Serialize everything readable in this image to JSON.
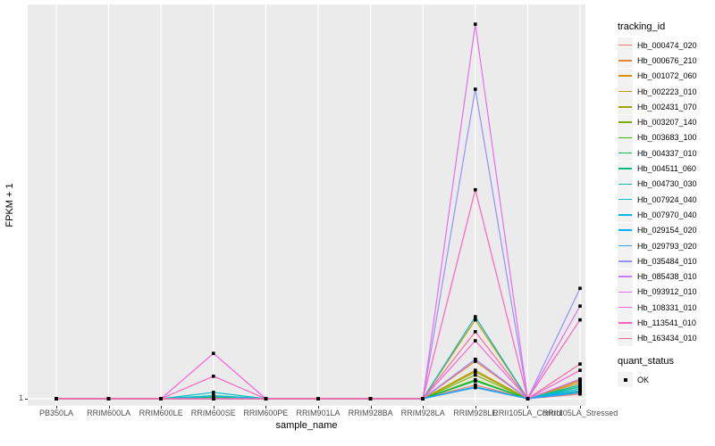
{
  "figure": {
    "background": "#FFFFFF",
    "panel_background": "#EBEBEB",
    "gridline_color": "#FFFFFF",
    "point_color": "#000000",
    "tick_label_color": "#4D4D4D"
  },
  "chart_data": {
    "type": "line",
    "title": "",
    "xlabel": "sample_name",
    "ylabel": "FPKM + 1",
    "y_tick_labels": [
      "1"
    ],
    "values_unit": "fraction of panel height above the y=1 baseline (only the '1' tick is labeled on the axis); 0 = FPKM+1 of 1",
    "legend_position": "right",
    "grid": "major vertical per category, horizontal at y=1",
    "categories": [
      "PB350LA",
      "RRIM600LA",
      "RRIM600LE",
      "RRIM600SE",
      "RRIM600PE",
      "RRIM901LA",
      "RRIM928BA",
      "RRIM928LA",
      "RRIM928LE",
      "RRII105LA_Control",
      "RRII105LA_Stressed"
    ],
    "series": [
      {
        "name": "Hb_000474_020",
        "color": "#F8766D",
        "values": [
          0,
          0,
          0,
          0,
          0,
          0,
          0,
          0,
          0.035,
          0,
          0.012
        ]
      },
      {
        "name": "Hb_000676_210",
        "color": "#EA8331",
        "values": [
          0,
          0,
          0,
          0,
          0,
          0,
          0,
          0,
          0.095,
          0,
          0.045
        ]
      },
      {
        "name": "Hb_001072_060",
        "color": "#D89000",
        "values": [
          0,
          0,
          0,
          0,
          0,
          0,
          0,
          0,
          0.2,
          0,
          0.048
        ]
      },
      {
        "name": "Hb_002223_010",
        "color": "#C09B00",
        "values": [
          0,
          0,
          0,
          0,
          0,
          0,
          0,
          0,
          0.072,
          0,
          0.04
        ]
      },
      {
        "name": "Hb_002431_070",
        "color": "#A3A500",
        "values": [
          0,
          0,
          0,
          0.004,
          0,
          0,
          0,
          0,
          0.068,
          0,
          0.034
        ]
      },
      {
        "name": "Hb_003207_140",
        "color": "#7CAE00",
        "values": [
          0,
          0,
          0,
          0,
          0,
          0,
          0,
          0,
          0.06,
          0,
          0.03
        ]
      },
      {
        "name": "Hb_003683_100",
        "color": "#39B600",
        "values": [
          0,
          0,
          0,
          0,
          0,
          0,
          0,
          0,
          0.048,
          0,
          0.025
        ]
      },
      {
        "name": "Hb_004337_010",
        "color": "#00BB4E",
        "values": [
          0,
          0,
          0,
          0,
          0,
          0,
          0,
          0,
          0.045,
          0,
          0.02
        ]
      },
      {
        "name": "Hb_004511_060",
        "color": "#00BF7D",
        "values": [
          0,
          0,
          0,
          0.004,
          0,
          0,
          0,
          0,
          0.03,
          0,
          0.018
        ]
      },
      {
        "name": "Hb_004730_030",
        "color": "#00C1A3",
        "values": [
          0,
          0,
          0,
          0.008,
          0,
          0,
          0,
          0,
          0.1,
          0,
          0.03
        ]
      },
      {
        "name": "Hb_007924_040",
        "color": "#00BFC4",
        "values": [
          0,
          0,
          0,
          0.016,
          0,
          0,
          0,
          0,
          0.208,
          0,
          0.035
        ]
      },
      {
        "name": "Hb_007970_040",
        "color": "#00BAE0",
        "values": [
          0,
          0,
          0,
          0.007,
          0,
          0,
          0,
          0,
          0.1,
          0,
          0.025
        ]
      },
      {
        "name": "Hb_029154_020",
        "color": "#00B0F6",
        "values": [
          0,
          0,
          0,
          0,
          0,
          0,
          0,
          0,
          0.03,
          0,
          0.02
        ]
      },
      {
        "name": "Hb_029793_020",
        "color": "#35A2FF",
        "values": [
          0,
          0,
          0,
          0,
          0,
          0,
          0,
          0,
          0.028,
          0,
          0.015
        ]
      },
      {
        "name": "Hb_035484_010",
        "color": "#9590FF",
        "values": [
          0,
          0,
          0,
          0,
          0,
          0,
          0,
          0,
          0.785,
          0,
          0.28
        ]
      },
      {
        "name": "Hb_085438_010",
        "color": "#C77CFF",
        "values": [
          0,
          0,
          0,
          0,
          0,
          0,
          0,
          0,
          0.1,
          0,
          0.05
        ]
      },
      {
        "name": "Hb_093912_010",
        "color": "#E76BF3",
        "values": [
          0,
          0,
          0,
          0,
          0,
          0,
          0,
          0,
          0.95,
          0,
          0.235
        ]
      },
      {
        "name": "Hb_108331_010",
        "color": "#FA62DB",
        "values": [
          0,
          0,
          0,
          0.115,
          0,
          0,
          0,
          0,
          0.147,
          0,
          0.072
        ]
      },
      {
        "name": "Hb_113541_010",
        "color": "#FF62BC",
        "values": [
          0,
          0,
          0,
          0.057,
          0,
          0,
          0,
          0,
          0.53,
          0,
          0.2
        ]
      },
      {
        "name": "Hb_163434_010",
        "color": "#FF6A98",
        "values": [
          0,
          0,
          0,
          0,
          0,
          0,
          0,
          0,
          0.17,
          0,
          0.088
        ]
      }
    ],
    "legend": {
      "tracking_title": "tracking_id",
      "quant_title": "quant_status",
      "quant_items": [
        {
          "label": "OK",
          "marker": "black-square"
        }
      ]
    }
  }
}
